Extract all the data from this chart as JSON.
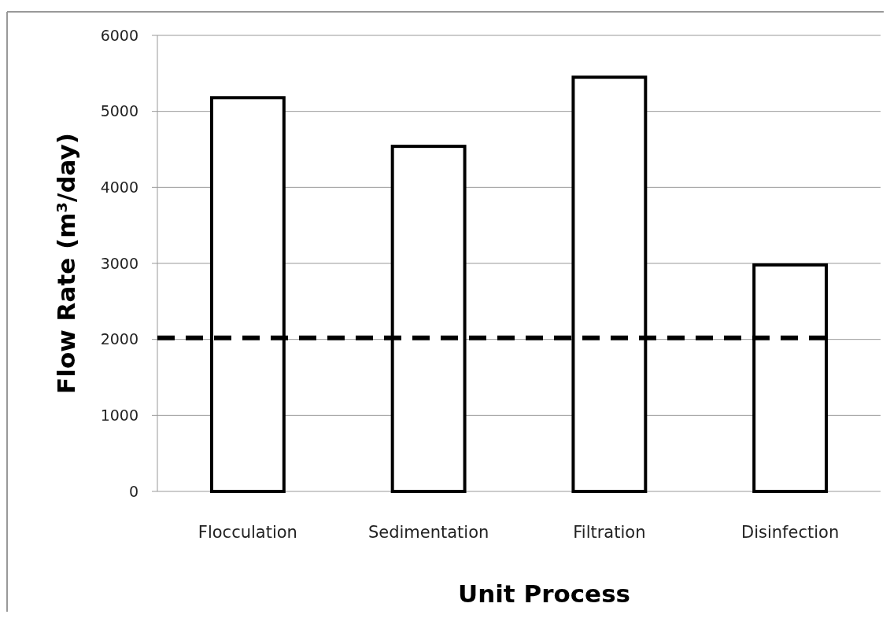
{
  "chart_data": {
    "type": "bar",
    "xlabel": "Unit Process",
    "ylabel": "Flow Rate (m³/day)",
    "categories": [
      "Flocculation",
      "Sedimentation",
      "Filtration",
      "Disinfection"
    ],
    "values": [
      5180,
      4540,
      5450,
      2980
    ],
    "color": "#ffffff",
    "ylim": [
      0,
      6000
    ],
    "yticks": [
      0,
      1000,
      2000,
      3000,
      4000,
      5000,
      6000
    ],
    "grid": "y",
    "ref_lines": [
      {
        "axis": "y",
        "value": 2020,
        "color": "#000000",
        "line_style": "dashed"
      }
    ]
  }
}
